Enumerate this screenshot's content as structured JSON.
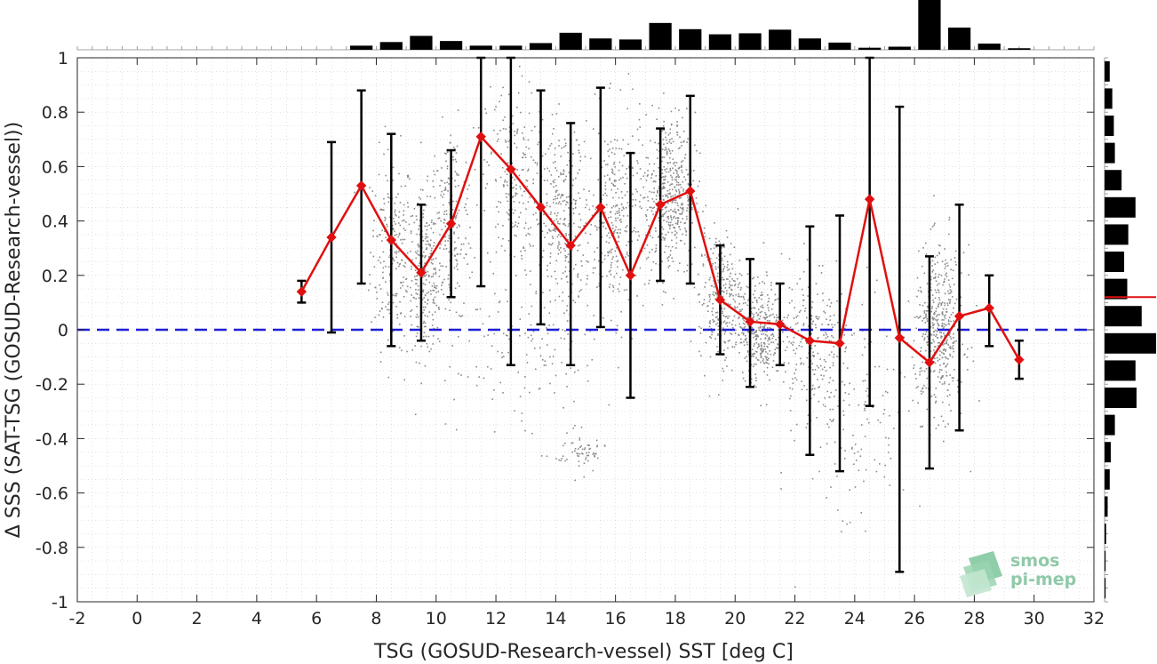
{
  "chart_data": {
    "type": "scatter",
    "xlabel": "TSG (GOSUD-Research-vessel) SST [deg C]",
    "ylabel": "Δ SSS (SAT-TSG (GOSUD-Research-vessel))",
    "xlim": [
      -2,
      32
    ],
    "ylim": [
      -1,
      1
    ],
    "xticks": [
      -2,
      0,
      2,
      4,
      6,
      8,
      10,
      12,
      14,
      16,
      18,
      20,
      22,
      24,
      26,
      28,
      30,
      32
    ],
    "yticks": [
      1,
      0.8,
      0.6,
      0.4,
      0.2,
      0,
      -0.2,
      -0.4,
      -0.6,
      -0.8,
      -1
    ],
    "grid": true,
    "reference_line": {
      "y": 0,
      "color": "#1f1fd6",
      "style": "dashed"
    },
    "mean_series": {
      "color": "#e01010",
      "marker": "diamond",
      "points": [
        {
          "x": 5.5,
          "y": 0.14,
          "lo": 0.1,
          "hi": 0.18
        },
        {
          "x": 6.5,
          "y": 0.34,
          "lo": -0.01,
          "hi": 0.69
        },
        {
          "x": 7.5,
          "y": 0.53,
          "lo": 0.17,
          "hi": 0.88
        },
        {
          "x": 8.5,
          "y": 0.33,
          "lo": -0.06,
          "hi": 0.72
        },
        {
          "x": 9.5,
          "y": 0.21,
          "lo": -0.04,
          "hi": 0.46
        },
        {
          "x": 10.5,
          "y": 0.39,
          "lo": 0.12,
          "hi": 0.66
        },
        {
          "x": 11.5,
          "y": 0.71,
          "lo": 0.16,
          "hi": 1.0
        },
        {
          "x": 12.5,
          "y": 0.59,
          "lo": -0.13,
          "hi": 1.0
        },
        {
          "x": 13.5,
          "y": 0.45,
          "lo": 0.02,
          "hi": 0.88
        },
        {
          "x": 14.5,
          "y": 0.31,
          "lo": -0.13,
          "hi": 0.76
        },
        {
          "x": 15.5,
          "y": 0.45,
          "lo": 0.01,
          "hi": 0.89
        },
        {
          "x": 16.5,
          "y": 0.2,
          "lo": -0.25,
          "hi": 0.65
        },
        {
          "x": 17.5,
          "y": 0.46,
          "lo": 0.18,
          "hi": 0.74
        },
        {
          "x": 18.5,
          "y": 0.51,
          "lo": 0.17,
          "hi": 0.86
        },
        {
          "x": 19.5,
          "y": 0.11,
          "lo": -0.09,
          "hi": 0.31
        },
        {
          "x": 20.5,
          "y": 0.03,
          "lo": -0.21,
          "hi": 0.26
        },
        {
          "x": 21.5,
          "y": 0.02,
          "lo": -0.13,
          "hi": 0.17
        },
        {
          "x": 22.5,
          "y": -0.04,
          "lo": -0.46,
          "hi": 0.38
        },
        {
          "x": 23.5,
          "y": -0.05,
          "lo": -0.52,
          "hi": 0.42
        },
        {
          "x": 24.5,
          "y": 0.48,
          "lo": -0.28,
          "hi": 1.0
        },
        {
          "x": 25.5,
          "y": -0.03,
          "lo": -0.89,
          "hi": 0.82
        },
        {
          "x": 26.5,
          "y": -0.12,
          "lo": -0.51,
          "hi": 0.27
        },
        {
          "x": 27.5,
          "y": 0.05,
          "lo": -0.37,
          "hi": 0.46
        },
        {
          "x": 28.5,
          "y": 0.08,
          "lo": -0.06,
          "hi": 0.2
        },
        {
          "x": 29.5,
          "y": -0.11,
          "lo": -0.18,
          "hi": -0.04
        }
      ]
    },
    "top_histogram": {
      "bin_centers": [
        7.5,
        8.5,
        9.5,
        10.5,
        11.5,
        12.5,
        13.5,
        14.5,
        15.5,
        16.5,
        17.5,
        18.5,
        19.5,
        20.5,
        21.5,
        22.5,
        23.5,
        24.5,
        25.5,
        26.5,
        27.5,
        28.5,
        29.5
      ],
      "counts": [
        0.08,
        0.15,
        0.27,
        0.17,
        0.08,
        0.08,
        0.13,
        0.33,
        0.22,
        0.2,
        0.52,
        0.4,
        0.3,
        0.32,
        0.39,
        0.22,
        0.14,
        0.04,
        0.06,
        1.0,
        0.43,
        0.12,
        0.03
      ]
    },
    "right_histogram": {
      "bin_centers": [
        0.95,
        0.85,
        0.75,
        0.65,
        0.55,
        0.45,
        0.35,
        0.25,
        0.15,
        0.05,
        -0.05,
        -0.15,
        -0.25,
        -0.35,
        -0.45,
        -0.55,
        -0.65,
        -0.75,
        -0.85,
        -0.95
      ],
      "counts": [
        0.1,
        0.15,
        0.18,
        0.2,
        0.33,
        0.6,
        0.46,
        0.38,
        0.44,
        0.72,
        1.0,
        0.6,
        0.62,
        0.2,
        0.12,
        0.1,
        0.06,
        0.03,
        0.02,
        0.02
      ],
      "mean_marker": 0.12
    },
    "scatter_clusters": [
      {
        "x": 8.5,
        "y": 0.3,
        "sx": 0.6,
        "sy": 0.3,
        "n": 220
      },
      {
        "x": 9.6,
        "y": 0.2,
        "sx": 0.5,
        "sy": 0.25,
        "n": 260
      },
      {
        "x": 10.5,
        "y": 0.38,
        "sx": 0.6,
        "sy": 0.3,
        "n": 200
      },
      {
        "x": 12.5,
        "y": 0.55,
        "sx": 0.7,
        "sy": 0.3,
        "n": 200
      },
      {
        "x": 14.2,
        "y": 0.4,
        "sx": 0.8,
        "sy": 0.3,
        "n": 300
      },
      {
        "x": 16.0,
        "y": 0.42,
        "sx": 0.8,
        "sy": 0.3,
        "n": 300
      },
      {
        "x": 17.8,
        "y": 0.5,
        "sx": 0.7,
        "sy": 0.25,
        "n": 450
      },
      {
        "x": 19.5,
        "y": 0.12,
        "sx": 0.6,
        "sy": 0.2,
        "n": 300
      },
      {
        "x": 20.8,
        "y": 0.0,
        "sx": 0.6,
        "sy": 0.15,
        "n": 320
      },
      {
        "x": 22.5,
        "y": -0.05,
        "sx": 0.8,
        "sy": 0.25,
        "n": 200
      },
      {
        "x": 26.8,
        "y": 0.0,
        "sx": 0.7,
        "sy": 0.25,
        "n": 450
      },
      {
        "x": 24.0,
        "y": -0.3,
        "sx": 1.5,
        "sy": 0.4,
        "n": 150
      },
      {
        "x": 14.8,
        "y": -0.45,
        "sx": 0.7,
        "sy": 0.06,
        "n": 60
      },
      {
        "x": 13.0,
        "y": -0.1,
        "sx": 2.0,
        "sy": 0.25,
        "n": 120
      }
    ]
  },
  "logo": {
    "line1": "smos",
    "line2": "pi-mep"
  }
}
